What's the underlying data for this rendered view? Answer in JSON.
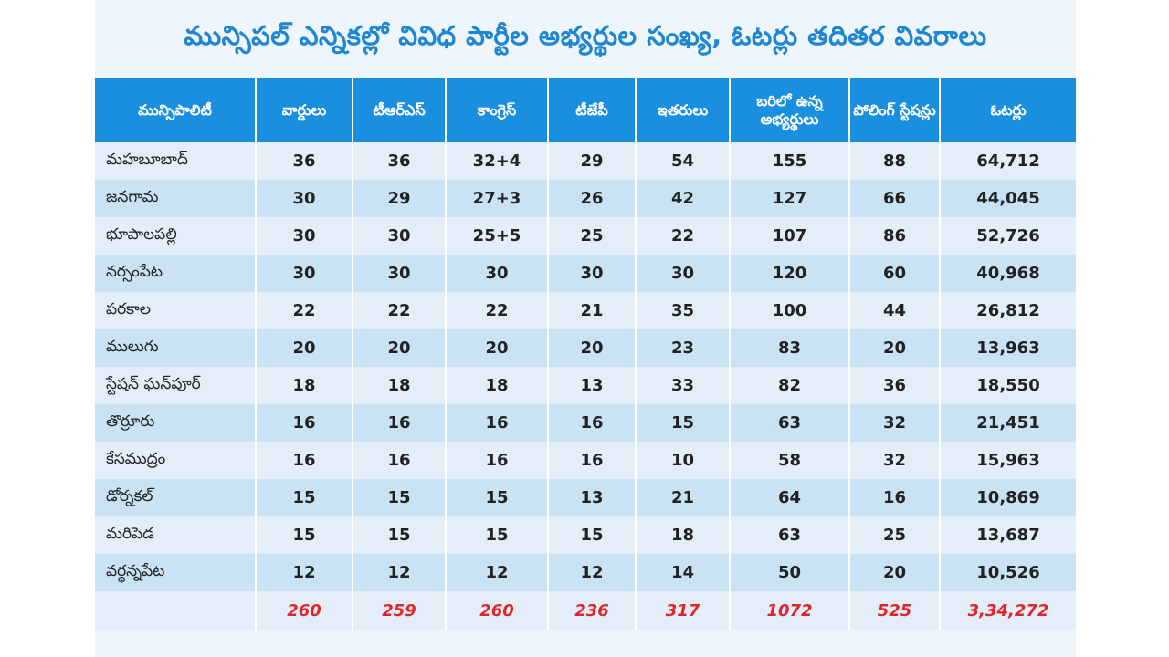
{
  "title": "మున్సిపల్ ఎన్నికల్లో వివిధ పార్టీల అభ్యర్థుల సంఖ్య, ఓటర్లు తదితర వివరాలు",
  "headers": [
    "మున్సిపాలిటీ",
    "వార్డులు",
    "టీఆర్ఎస్",
    "కాంగ్రెస్",
    "టీజేపీ",
    "ఇతరులు",
    "బరిలో ఉన్న అభ్యర్థులు",
    "పోలింగ్ స్టేషన్లు",
    "ఓటర్లు"
  ],
  "rows": [
    [
      "మహబూబాద్",
      "36",
      "36",
      "32+4",
      "29",
      "54",
      "155",
      "88",
      "64,712"
    ],
    [
      "జనగామ",
      "30",
      "29",
      "27+3",
      "26",
      "42",
      "127",
      "66",
      "44,045"
    ],
    [
      "భూపాలపల్లి",
      "30",
      "30",
      "25+5",
      "25",
      "22",
      "107",
      "86",
      "52,726"
    ],
    [
      "నర్సంపేట",
      "30",
      "30",
      "30",
      "30",
      "30",
      "120",
      "60",
      "40,968"
    ],
    [
      "పరకాల",
      "22",
      "22",
      "22",
      "21",
      "35",
      "100",
      "44",
      "26,812"
    ],
    [
      "ములుగు",
      "20",
      "20",
      "20",
      "20",
      "23",
      "83",
      "20",
      "13,963"
    ],
    [
      "స్టేషన్ ఘన్‌పూర్",
      "18",
      "18",
      "18",
      "13",
      "33",
      "82",
      "36",
      "18,550"
    ],
    [
      "తొర్రూరు",
      "16",
      "16",
      "16",
      "16",
      "15",
      "63",
      "32",
      "21,451"
    ],
    [
      "కేసముద్రం",
      "16",
      "16",
      "16",
      "16",
      "10",
      "58",
      "32",
      "15,963"
    ],
    [
      "డోర్నకల్",
      "15",
      "15",
      "15",
      "13",
      "21",
      "64",
      "16",
      "10,869"
    ],
    [
      "మరిపెడ",
      "15",
      "15",
      "15",
      "15",
      "18",
      "63",
      "25",
      "13,687"
    ],
    [
      "వర్ధన్నపేట",
      "12",
      "12",
      "12",
      "12",
      "14",
      "50",
      "20",
      "10,526"
    ]
  ],
  "totals": [
    "",
    "260",
    "259",
    "260",
    "236",
    "317",
    "1072",
    "525",
    "3,34,272"
  ],
  "colors": {
    "header_bg": "#1a8fe0",
    "title": "#1f86d2",
    "row_light": "#e3eef8",
    "row_dark": "#c9e2f4",
    "total_text": "#e0262a"
  }
}
